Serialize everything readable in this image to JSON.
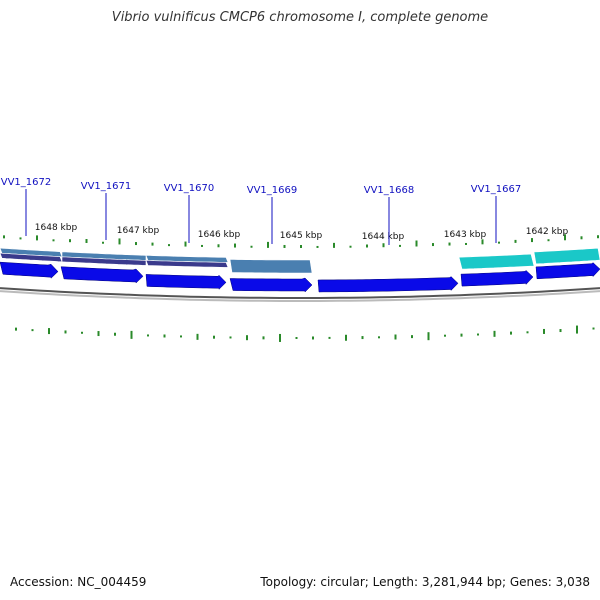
{
  "title": "Vibrio vulnificus CMCP6 chromosome I, complete genome",
  "footer": {
    "accession": "Accession: NC_004459",
    "summary": "Topology: circular; Length: 3,281,944 bp; Genes: 3,038"
  },
  "colors": {
    "gene_label": "#1010c0",
    "tick_label": "#111111",
    "gc_skew": "#2a8a2a",
    "cds_arrow": "#0a0ae8",
    "feature_purple": "#3a3a8c",
    "feature_steel": "#4a7fb0",
    "feature_cyan": "#1ac8c8",
    "backbone": "#888888"
  },
  "gene_labels": [
    "VV1_1672",
    "VV1_1671",
    "VV1_1670",
    "VV1_1669",
    "VV1_1668",
    "VV1_1667"
  ],
  "tick_labels": [
    "1648 kbp",
    "1647 kbp",
    "1646 kbp",
    "1645 kbp",
    "1644 kbp",
    "1643 kbp",
    "1642 kbp"
  ]
}
